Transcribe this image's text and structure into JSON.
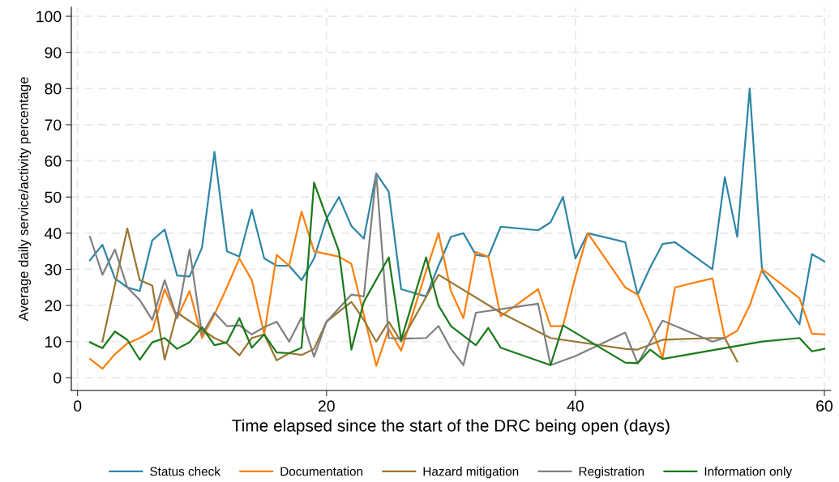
{
  "chart_data": {
    "type": "line",
    "xlabel": "Time elapsed since the start of the DRC being open (days)",
    "ylabel": "Average daily service/activity percentage",
    "xlim": [
      -0.5,
      60.5
    ],
    "xticks": [
      0,
      20,
      40,
      60
    ],
    "ylim": [
      -3.5,
      102.5
    ],
    "yticks": [
      0,
      10,
      20,
      30,
      40,
      50,
      60,
      70,
      80,
      90,
      100
    ],
    "grid": true,
    "legend": "bottom",
    "marker": "none",
    "line_style": "solid",
    "series": [
      {
        "name": "Status check",
        "color": "#2e86a6",
        "x": [
          1,
          2,
          3,
          4,
          5,
          6,
          7,
          8,
          9,
          10,
          11,
          12,
          13,
          14,
          15,
          16,
          17,
          18,
          19,
          20,
          21,
          22,
          23,
          24,
          25,
          26,
          28,
          29,
          30,
          31,
          32,
          33,
          34,
          37,
          38,
          39,
          40,
          41,
          44,
          45,
          46,
          47,
          48,
          51,
          52,
          53,
          54,
          55,
          58,
          59,
          60
        ],
        "values": [
          32.5,
          36.8,
          27.5,
          25,
          24,
          38,
          41,
          28.3,
          28,
          36,
          62.5,
          35,
          33.5,
          46.5,
          33,
          31,
          31,
          27,
          33,
          44,
          50,
          42,
          38.5,
          56.5,
          51.5,
          24.5,
          22.5,
          31,
          39,
          40,
          34,
          33.5,
          41.8,
          40.8,
          43,
          50,
          33,
          40,
          37.5,
          23,
          30.5,
          37,
          37.5,
          30,
          55.5,
          39,
          80,
          29.5,
          14.8,
          34.2,
          32.2
        ]
      },
      {
        "name": "Documentation",
        "color": "#ff7f0e",
        "x": [
          1,
          2,
          3,
          4,
          5,
          6,
          7,
          8,
          9,
          10,
          11,
          12,
          13,
          14,
          15,
          16,
          17,
          18,
          19,
          21,
          22,
          24,
          25,
          26,
          28,
          29,
          30,
          31,
          32,
          33,
          34,
          37,
          38,
          39,
          40,
          41,
          44,
          45,
          46,
          47,
          48,
          51,
          52,
          53,
          54,
          55,
          58,
          59,
          60
        ],
        "values": [
          5.2,
          2.5,
          6.5,
          9.5,
          11,
          13,
          24.5,
          16.5,
          24,
          11,
          17.5,
          25,
          33,
          27,
          12,
          34,
          31,
          46,
          35,
          33.5,
          31.5,
          3.3,
          13.5,
          7.5,
          29.5,
          40,
          24,
          16.5,
          34.8,
          33.5,
          17,
          24.5,
          14.3,
          14.3,
          28,
          40,
          25,
          23,
          15,
          5.5,
          25,
          27.5,
          11,
          13,
          20,
          30,
          22,
          12.2,
          12
        ]
      },
      {
        "name": "Hazard mitigation",
        "color": "#9a7632",
        "x": [
          2,
          4,
          5,
          6,
          7,
          8,
          11,
          12,
          13,
          14,
          15,
          16,
          17,
          18,
          19,
          20,
          22,
          23,
          24,
          25,
          26,
          29,
          34,
          38,
          44,
          45,
          47,
          51,
          52,
          53
        ],
        "values": [
          10,
          41.3,
          27,
          25.5,
          5,
          18,
          11,
          9.5,
          6.2,
          11,
          12,
          4.8,
          6.8,
          6.3,
          8,
          15.5,
          21,
          16,
          10,
          15.5,
          10,
          28.5,
          18,
          11,
          8,
          7.8,
          10.5,
          11,
          11,
          4.5
        ]
      },
      {
        "name": "Registration",
        "color": "#808080",
        "x": [
          1,
          2,
          3,
          4,
          5,
          6,
          7,
          8,
          9,
          10,
          11,
          12,
          13,
          14,
          15,
          16,
          17,
          18,
          19,
          20,
          22,
          23,
          24,
          25,
          26,
          28,
          29,
          30,
          31,
          32,
          34,
          37,
          38,
          40,
          44,
          45,
          47,
          51,
          52
        ],
        "values": [
          39,
          28.5,
          35.5,
          25,
          21.5,
          16,
          27,
          16.5,
          35.5,
          12,
          18,
          14.3,
          14.5,
          12,
          14,
          15.5,
          10,
          16.7,
          5.8,
          15.5,
          23,
          22.5,
          56.5,
          11,
          10.8,
          11,
          14.3,
          8,
          3.5,
          18,
          19,
          20.5,
          3.5,
          6,
          12.5,
          4,
          15.8,
          10,
          11
        ]
      },
      {
        "name": "Information only",
        "color": "#1a7a1a",
        "x": [
          1,
          2,
          3,
          4,
          5,
          6,
          7,
          8,
          9,
          10,
          11,
          12,
          13,
          14,
          15,
          16,
          17,
          18,
          19,
          21,
          22,
          23,
          25,
          26,
          28,
          29,
          30,
          32,
          33,
          34,
          38,
          39,
          44,
          45,
          46,
          47,
          55,
          58,
          59,
          60
        ],
        "values": [
          9.8,
          8.2,
          12.8,
          10.5,
          5,
          9.8,
          11,
          8,
          9.8,
          14,
          9,
          9.8,
          16.5,
          8.3,
          12,
          7,
          6.8,
          8.3,
          54,
          35,
          7.8,
          21,
          33.3,
          10.5,
          33.3,
          20,
          14.3,
          9,
          13.8,
          8.3,
          3.5,
          14.5,
          4.2,
          4,
          7.8,
          5.2,
          10,
          11,
          7.3,
          8
        ]
      }
    ]
  }
}
